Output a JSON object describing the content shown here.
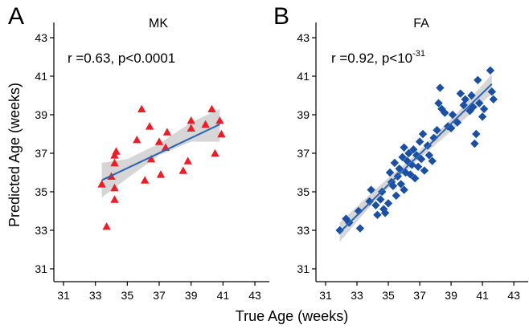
{
  "figure": {
    "xlabel": "True Age (weeks)",
    "ylabel": "Predicted Age (weeks)"
  },
  "chart_data": [
    {
      "type": "scatter",
      "panel_letter": "A",
      "title": "MK",
      "annotation": "r =0.63, p<0.0001",
      "xlabel": "True Age (weeks)",
      "ylabel": "Predicted Age (weeks)",
      "xlim": [
        30.5,
        43.5
      ],
      "ylim": [
        30.5,
        43.5
      ],
      "x_ticks": [
        31,
        33,
        35,
        37,
        39,
        41,
        43
      ],
      "y_ticks": [
        31,
        33,
        35,
        37,
        39,
        41,
        43
      ],
      "grid": false,
      "marker": "triangle",
      "marker_color": "#ee1c25",
      "fit_color": "#2b64b5",
      "ci_color": "#c8c8c8",
      "fit_line": {
        "x": [
          33.4,
          40.8
        ],
        "y": [
          35.6,
          38.5
        ]
      },
      "ci_band": {
        "x": [
          33.4,
          35.0,
          37.0,
          39.0,
          40.8
        ],
        "upper": [
          36.5,
          36.7,
          37.5,
          38.6,
          39.3
        ],
        "lower": [
          34.7,
          35.7,
          36.9,
          37.6,
          37.6
        ]
      },
      "points": [
        {
          "x": 33.4,
          "y": 35.4
        },
        {
          "x": 33.7,
          "y": 33.2
        },
        {
          "x": 34.0,
          "y": 35.8
        },
        {
          "x": 34.2,
          "y": 36.9
        },
        {
          "x": 34.3,
          "y": 37.1
        },
        {
          "x": 34.2,
          "y": 36.5
        },
        {
          "x": 34.2,
          "y": 35.2
        },
        {
          "x": 34.2,
          "y": 34.6
        },
        {
          "x": 35.6,
          "y": 37.7
        },
        {
          "x": 35.9,
          "y": 39.3
        },
        {
          "x": 36.1,
          "y": 35.6
        },
        {
          "x": 36.4,
          "y": 38.4
        },
        {
          "x": 36.5,
          "y": 36.7
        },
        {
          "x": 37.0,
          "y": 37.6
        },
        {
          "x": 37.1,
          "y": 35.9
        },
        {
          "x": 37.5,
          "y": 38.1
        },
        {
          "x": 37.4,
          "y": 37.3
        },
        {
          "x": 38.5,
          "y": 36.1
        },
        {
          "x": 38.8,
          "y": 36.6
        },
        {
          "x": 39.0,
          "y": 38.3
        },
        {
          "x": 39.0,
          "y": 38.7
        },
        {
          "x": 39.9,
          "y": 38.5
        },
        {
          "x": 40.3,
          "y": 39.3
        },
        {
          "x": 40.5,
          "y": 37.0
        },
        {
          "x": 40.8,
          "y": 38.7
        },
        {
          "x": 40.9,
          "y": 38.0
        }
      ]
    },
    {
      "type": "scatter",
      "panel_letter": "B",
      "title": "FA",
      "annotation_prefix": "r =0.92, p<10",
      "annotation_exponent": "-31",
      "xlabel": "True Age (weeks)",
      "ylabel": "Predicted Age (weeks)",
      "xlim": [
        30.5,
        43.5
      ],
      "ylim": [
        30.5,
        43.5
      ],
      "x_ticks": [
        31,
        33,
        35,
        37,
        39,
        41,
        43
      ],
      "y_ticks": [
        31,
        33,
        35,
        37,
        39,
        41,
        43
      ],
      "grid": false,
      "marker": "diamond",
      "marker_color": "#1a4fa3",
      "fit_color": "#2b64b5",
      "ci_color": "#c8c8c8",
      "fit_line": {
        "x": [
          31.9,
          41.6
        ],
        "y": [
          32.9,
          40.6
        ]
      },
      "ci_band": {
        "x": [
          31.9,
          34.0,
          36.8,
          39.5,
          41.6
        ],
        "upper": [
          33.4,
          35.0,
          37.0,
          39.2,
          41.1
        ],
        "lower": [
          32.4,
          34.4,
          36.6,
          38.5,
          40.1
        ]
      },
      "points": [
        {
          "x": 31.9,
          "y": 33.0
        },
        {
          "x": 32.3,
          "y": 33.6
        },
        {
          "x": 32.5,
          "y": 33.4
        },
        {
          "x": 33.1,
          "y": 34.0
        },
        {
          "x": 33.2,
          "y": 33.1
        },
        {
          "x": 33.8,
          "y": 34.5
        },
        {
          "x": 33.9,
          "y": 35.1
        },
        {
          "x": 34.2,
          "y": 34.3
        },
        {
          "x": 34.3,
          "y": 33.8
        },
        {
          "x": 34.5,
          "y": 34.6
        },
        {
          "x": 34.6,
          "y": 35.0
        },
        {
          "x": 34.7,
          "y": 34.1
        },
        {
          "x": 34.8,
          "y": 33.9
        },
        {
          "x": 35.0,
          "y": 34.4
        },
        {
          "x": 35.1,
          "y": 36.0
        },
        {
          "x": 35.2,
          "y": 35.5
        },
        {
          "x": 35.3,
          "y": 35.3
        },
        {
          "x": 35.4,
          "y": 36.5
        },
        {
          "x": 35.5,
          "y": 34.8
        },
        {
          "x": 35.6,
          "y": 35.8
        },
        {
          "x": 35.7,
          "y": 36.2
        },
        {
          "x": 35.8,
          "y": 35.4
        },
        {
          "x": 35.9,
          "y": 36.8
        },
        {
          "x": 36.0,
          "y": 37.3
        },
        {
          "x": 36.0,
          "y": 35.1
        },
        {
          "x": 36.1,
          "y": 36.0
        },
        {
          "x": 36.2,
          "y": 36.6
        },
        {
          "x": 36.3,
          "y": 37.0
        },
        {
          "x": 36.4,
          "y": 35.9
        },
        {
          "x": 36.5,
          "y": 36.4
        },
        {
          "x": 36.6,
          "y": 37.2
        },
        {
          "x": 36.7,
          "y": 35.7
        },
        {
          "x": 36.8,
          "y": 36.9
        },
        {
          "x": 36.9,
          "y": 36.3
        },
        {
          "x": 37.0,
          "y": 37.6
        },
        {
          "x": 37.1,
          "y": 36.7
        },
        {
          "x": 37.2,
          "y": 38.0
        },
        {
          "x": 37.3,
          "y": 36.1
        },
        {
          "x": 37.5,
          "y": 37.4
        },
        {
          "x": 37.6,
          "y": 36.9
        },
        {
          "x": 37.8,
          "y": 36.6
        },
        {
          "x": 37.9,
          "y": 37.8
        },
        {
          "x": 38.1,
          "y": 38.2
        },
        {
          "x": 38.2,
          "y": 39.6
        },
        {
          "x": 38.3,
          "y": 40.4
        },
        {
          "x": 38.4,
          "y": 39.3
        },
        {
          "x": 38.6,
          "y": 39.1
        },
        {
          "x": 38.8,
          "y": 38.4
        },
        {
          "x": 39.0,
          "y": 38.3
        },
        {
          "x": 39.1,
          "y": 39.0
        },
        {
          "x": 39.4,
          "y": 38.6
        },
        {
          "x": 39.6,
          "y": 40.1
        },
        {
          "x": 39.8,
          "y": 39.5
        },
        {
          "x": 39.9,
          "y": 39.8
        },
        {
          "x": 40.2,
          "y": 39.2
        },
        {
          "x": 40.3,
          "y": 40.0
        },
        {
          "x": 40.4,
          "y": 39.4
        },
        {
          "x": 40.5,
          "y": 37.5
        },
        {
          "x": 40.6,
          "y": 38.0
        },
        {
          "x": 40.7,
          "y": 40.8
        },
        {
          "x": 40.8,
          "y": 39.6
        },
        {
          "x": 41.0,
          "y": 38.9
        },
        {
          "x": 41.1,
          "y": 39.3
        },
        {
          "x": 41.5,
          "y": 41.3
        },
        {
          "x": 41.6,
          "y": 40.2
        },
        {
          "x": 41.7,
          "y": 39.8
        }
      ]
    }
  ]
}
